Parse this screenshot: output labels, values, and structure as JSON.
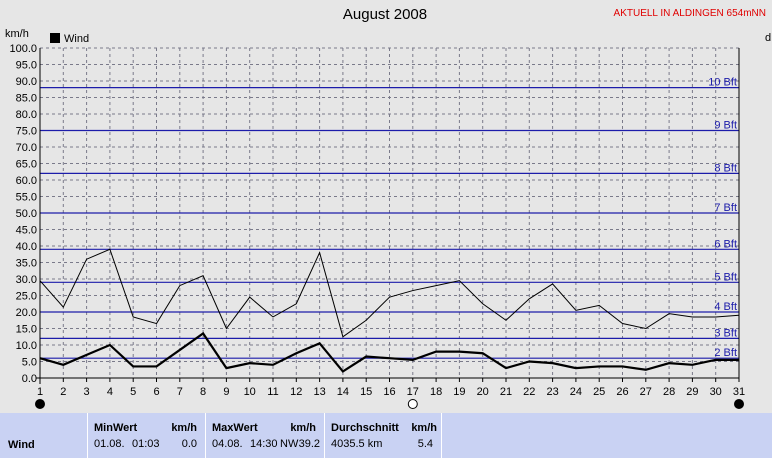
{
  "header": {
    "title": "August 2008",
    "station": "AKTUELL IN ALDINGEN 654mNN",
    "unit_left": "km/h",
    "unit_right": "d"
  },
  "chart_data": {
    "type": "line",
    "title": "August 2008",
    "ylabel": "km/h",
    "xlabel": "",
    "ylim": [
      0,
      100
    ],
    "yticks": [
      "0.0",
      "5.0",
      "10.0",
      "15.0",
      "20.0",
      "25.0",
      "30.0",
      "35.0",
      "40.0",
      "45.0",
      "50.0",
      "55.0",
      "60.0",
      "65.0",
      "70.0",
      "75.0",
      "80.0",
      "85.0",
      "90.0",
      "95.0",
      "100.0"
    ],
    "x": [
      1,
      2,
      3,
      4,
      5,
      6,
      7,
      8,
      9,
      10,
      11,
      12,
      13,
      14,
      15,
      16,
      17,
      18,
      19,
      20,
      21,
      22,
      23,
      24,
      25,
      26,
      27,
      28,
      29,
      30,
      31
    ],
    "grid": true,
    "legend": {
      "position": "top-left",
      "entries": [
        "Wind"
      ]
    },
    "beaufort_lines": [
      {
        "label": "2 Bft",
        "value": 6
      },
      {
        "label": "3 Bft",
        "value": 12
      },
      {
        "label": "4 Bft",
        "value": 20
      },
      {
        "label": "5 Bft",
        "value": 29
      },
      {
        "label": "6 Bft",
        "value": 39
      },
      {
        "label": "7 Bft",
        "value": 50
      },
      {
        "label": "8 Bft",
        "value": 62
      },
      {
        "label": "9 Bft",
        "value": 75
      },
      {
        "label": "10 Bft",
        "value": 88
      }
    ],
    "series": [
      {
        "name": "Wind",
        "role": "average",
        "values": [
          6,
          4,
          7,
          10,
          3.5,
          3.5,
          8.5,
          13.5,
          3,
          4.5,
          4,
          7.5,
          10.5,
          2,
          6.5,
          6,
          5.5,
          8,
          8,
          7.5,
          3,
          5,
          4.5,
          3,
          3.5,
          3.5,
          2.5,
          4.5,
          4,
          5.5,
          5.5
        ]
      },
      {
        "role": "maximum",
        "values": [
          29.5,
          21.5,
          36,
          39,
          18.5,
          16.5,
          28,
          31,
          15,
          24.5,
          18.5,
          22.5,
          38,
          12.5,
          17.5,
          24.5,
          26.5,
          28,
          29.5,
          22.5,
          17.5,
          24,
          28.5,
          20.5,
          22,
          16.5,
          15,
          19.5,
          18.5,
          18.5,
          19
        ]
      }
    ],
    "moon_icons": [
      {
        "day": 1,
        "phase": "new-moon"
      },
      {
        "day": 17,
        "phase": "full-moon"
      },
      {
        "day": 31,
        "phase": "new-moon"
      }
    ]
  },
  "stats": {
    "row_label": "Wind",
    "min": {
      "header": "MinWert",
      "unit": "km/h",
      "date": "01.08.",
      "time": "01:03",
      "value": "0.0"
    },
    "max": {
      "header": "MaxWert",
      "unit": "km/h",
      "date": "04.08.",
      "time": "14:30",
      "dir": "NW",
      "value": "39.2"
    },
    "avg": {
      "header": "Durchschnitt",
      "unit": "km/h",
      "distance": "4035.5 km",
      "value": "5.4"
    }
  },
  "colors": {
    "background": "#e6e6e6",
    "grid": "#7a7a8a",
    "beaufort_line": "#1c1caa",
    "beaufort_label": "#1c1caa",
    "panel": "#c9d2f3",
    "station_text": "#e00000"
  }
}
